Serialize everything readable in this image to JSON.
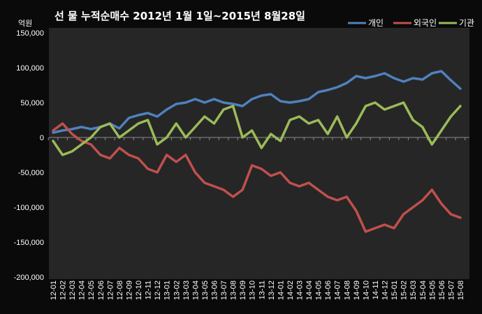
{
  "chart_data": {
    "type": "line",
    "title": "선 물 누적순매수 2012년 1월 1일~2015년 8월28일",
    "unit_label": "억원",
    "ylim": [
      -200000,
      150000
    ],
    "yticks": [
      150000,
      100000,
      50000,
      0,
      -50000,
      -100000,
      -150000,
      -200000
    ],
    "ytick_labels": [
      "150,000",
      "100,000",
      "50,000",
      "0",
      "-50,000",
      "-100,000",
      "-150,000",
      "-200,000"
    ],
    "grid": false,
    "legend_position": "top-right",
    "categories": [
      "12-01",
      "12-02",
      "12-03",
      "12-04",
      "12-05",
      "12-06",
      "12-07",
      "12-08",
      "12-09",
      "12-10",
      "12-11",
      "12-12",
      "13-01",
      "13-02",
      "13-03",
      "13-04",
      "13-05",
      "13-06",
      "13-07",
      "13-08",
      "13-09",
      "13-10",
      "13-11",
      "13-12",
      "14-01",
      "14-02",
      "14-03",
      "14-04",
      "14-05",
      "14-06",
      "14-07",
      "14-08",
      "14-09",
      "14-10",
      "14-11",
      "14-12",
      "15-01",
      "15-02",
      "15-03",
      "15-04",
      "15-05",
      "15-06",
      "15-07",
      "15-08"
    ],
    "series": [
      {
        "name": "개인",
        "color": "#4f81bd",
        "values": [
          7000,
          10000,
          12000,
          15000,
          12000,
          15000,
          20000,
          13000,
          28000,
          32000,
          35000,
          30000,
          40000,
          48000,
          50000,
          55000,
          50000,
          55000,
          50000,
          48000,
          45000,
          55000,
          60000,
          62000,
          52000,
          50000,
          52000,
          55000,
          65000,
          68000,
          72000,
          78000,
          88000,
          85000,
          88000,
          92000,
          85000,
          80000,
          85000,
          83000,
          92000,
          95000,
          82000,
          70000
        ]
      },
      {
        "name": "외국인",
        "color": "#c0504d",
        "values": [
          10000,
          20000,
          5000,
          -5000,
          -10000,
          -25000,
          -30000,
          -15000,
          -25000,
          -30000,
          -45000,
          -50000,
          -25000,
          -35000,
          -25000,
          -50000,
          -65000,
          -70000,
          -75000,
          -85000,
          -75000,
          -40000,
          -45000,
          -55000,
          -50000,
          -65000,
          -70000,
          -65000,
          -75000,
          -85000,
          -90000,
          -85000,
          -105000,
          -135000,
          -130000,
          -125000,
          -130000,
          -110000,
          -100000,
          -90000,
          -75000,
          -95000,
          -110000,
          -115000
        ]
      },
      {
        "name": "기관",
        "color": "#9bbb59",
        "values": [
          -5000,
          -25000,
          -20000,
          -10000,
          0,
          15000,
          20000,
          0,
          10000,
          20000,
          25000,
          -10000,
          0,
          20000,
          0,
          15000,
          30000,
          20000,
          40000,
          45000,
          0,
          10000,
          -15000,
          5000,
          -5000,
          25000,
          30000,
          20000,
          25000,
          5000,
          30000,
          0,
          20000,
          45000,
          50000,
          40000,
          45000,
          50000,
          25000,
          15000,
          -10000,
          10000,
          30000,
          45000
        ]
      }
    ]
  }
}
